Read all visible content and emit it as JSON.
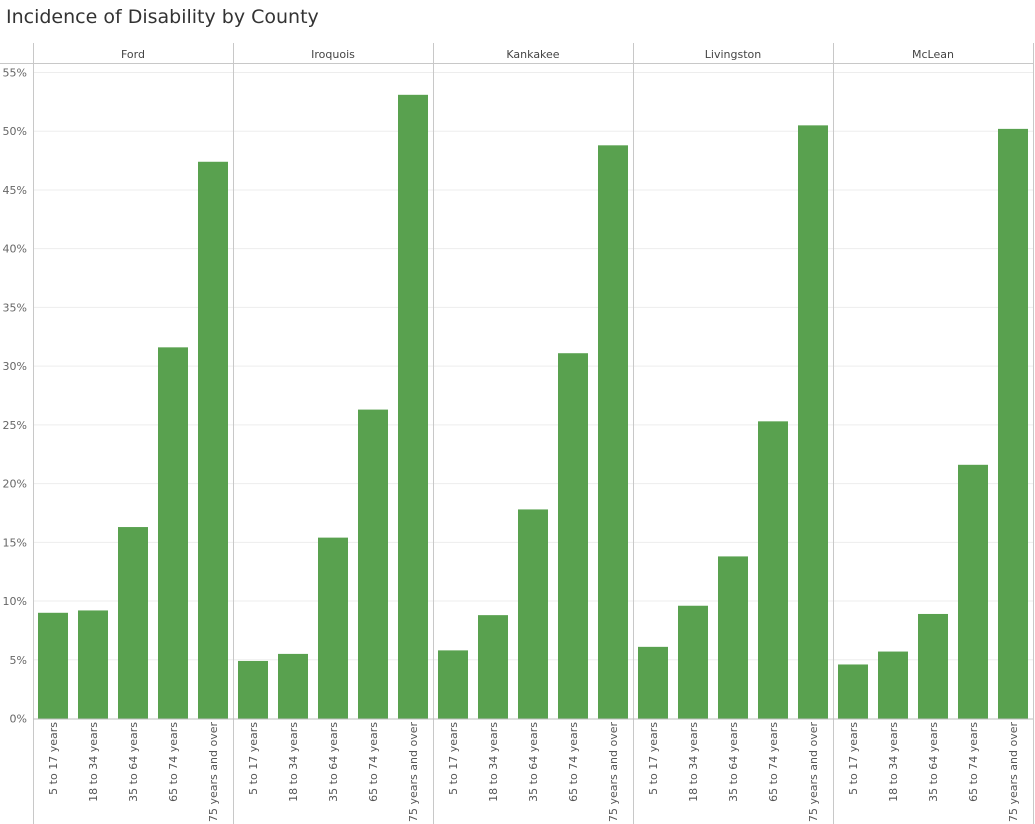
{
  "chart_data": {
    "type": "bar",
    "title": "Incidence of Disability by County",
    "facet_field": "",
    "panels": [
      "Ford",
      "Iroquois",
      "Kankakee",
      "Livingston",
      "McLean"
    ],
    "categories": [
      "5 to 17 years",
      "18 to 34 years",
      "35 to 64 years",
      "65 to 74 years",
      "75 years and over"
    ],
    "series": [
      {
        "panel": "Ford",
        "values": [
          9.0,
          9.2,
          16.3,
          31.6,
          47.4
        ]
      },
      {
        "panel": "Iroquois",
        "values": [
          4.9,
          5.5,
          15.4,
          26.3,
          53.1
        ]
      },
      {
        "panel": "Kankakee",
        "values": [
          5.8,
          8.8,
          17.8,
          31.1,
          48.8
        ]
      },
      {
        "panel": "Livingston",
        "values": [
          6.1,
          9.6,
          13.8,
          25.3,
          50.5
        ]
      },
      {
        "panel": "McLean",
        "values": [
          4.6,
          5.7,
          8.9,
          21.6,
          50.2
        ]
      }
    ],
    "y_ticks": [
      "0%",
      "5%",
      "10%",
      "15%",
      "20%",
      "25%",
      "30%",
      "35%",
      "40%",
      "45%",
      "50%",
      "55%"
    ],
    "ylim": [
      0,
      55
    ],
    "xlabel": "",
    "ylabel": "",
    "grid": true,
    "legend": "none",
    "bar_color": "#59a14f"
  }
}
